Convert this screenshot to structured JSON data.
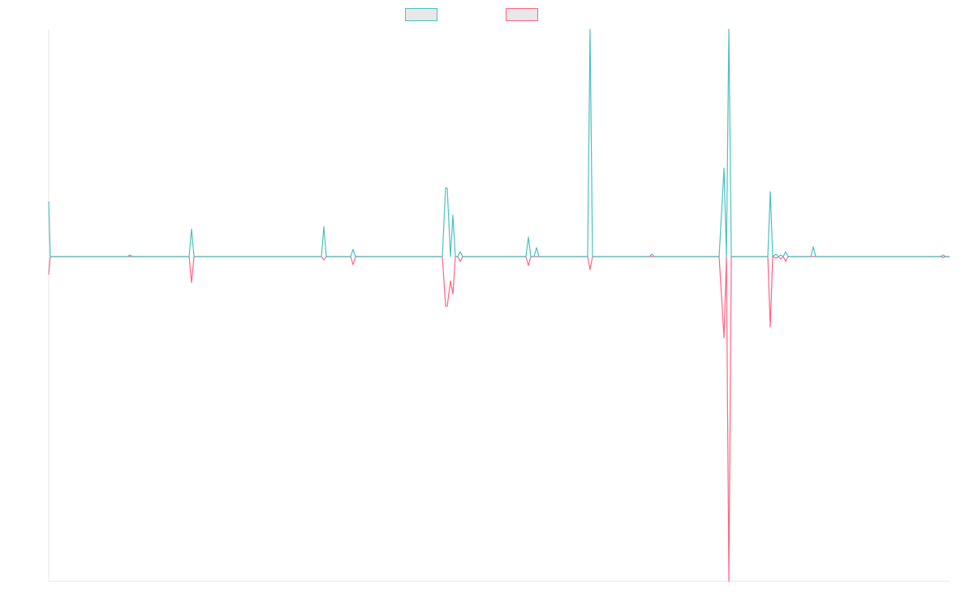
{
  "chart_data": {
    "type": "line",
    "x": [
      0,
      2,
      97,
      100,
      103,
      173,
      176,
      179,
      336,
      339,
      342,
      372,
      375,
      378,
      485,
      489,
      491,
      495,
      498,
      501,
      504,
      507,
      510,
      588,
      591,
      594,
      598,
      601,
      604,
      664,
      667,
      670,
      740,
      743,
      746,
      826,
      832,
      835,
      838,
      841,
      886,
      889,
      892,
      896,
      899,
      902,
      905,
      908,
      911,
      939,
      942,
      945,
      1099,
      1102,
      1105,
      1110
    ],
    "series": [
      {
        "color": "#ff6384",
        "values": [
          -22,
          0,
          0,
          0,
          0,
          0,
          -32,
          0,
          0,
          -4,
          0,
          0,
          -10,
          0,
          0,
          -61,
          -61,
          -30,
          -46,
          0,
          0,
          -6,
          0,
          0,
          -11,
          0,
          0,
          0,
          0,
          0,
          -16,
          0,
          0,
          0,
          0,
          0,
          -100,
          0,
          -400,
          0,
          0,
          -87,
          0,
          -2,
          0,
          -3,
          0,
          -6,
          0,
          0,
          0,
          0,
          0,
          -1,
          0,
          0
        ]
      },
      {
        "color": "#4bc0c0",
        "values": [
          68,
          0,
          0,
          2,
          0,
          0,
          34,
          0,
          0,
          37,
          0,
          0,
          9,
          0,
          0,
          85,
          84,
          0,
          51,
          0,
          0,
          6,
          0,
          0,
          24,
          0,
          0,
          11,
          0,
          0,
          280,
          0,
          0,
          3,
          0,
          0,
          109,
          0,
          280,
          0,
          0,
          80,
          0,
          3,
          0,
          2,
          0,
          6,
          0,
          0,
          12,
          0,
          0,
          2,
          0,
          0
        ]
      }
    ],
    "xlim": [
      0,
      1110
    ],
    "ylim": [
      -400,
      280
    ],
    "legend": "top"
  }
}
